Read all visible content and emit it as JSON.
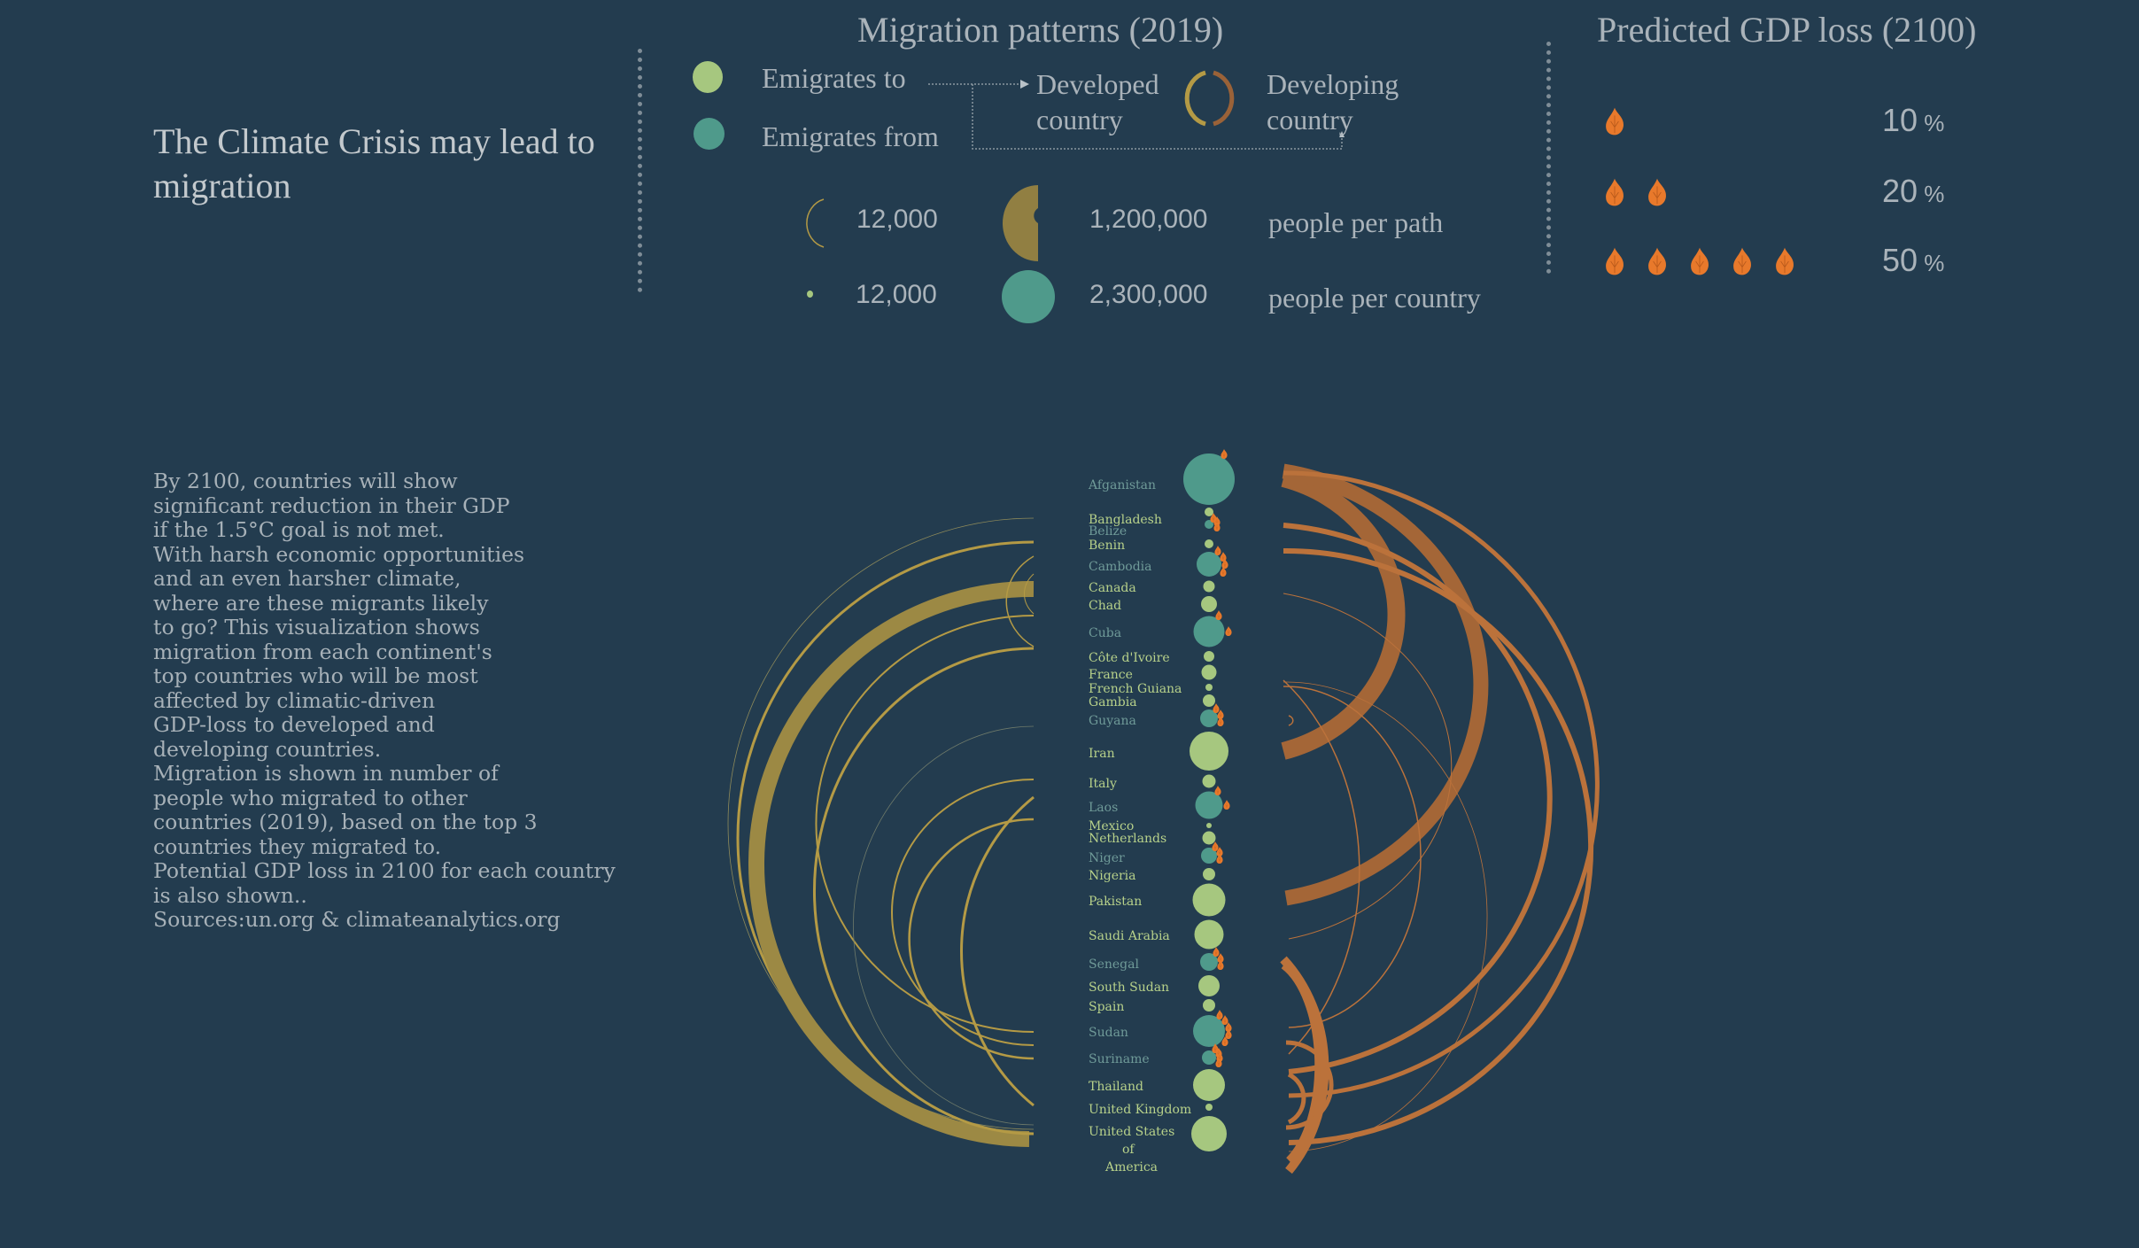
{
  "title": "The Climate Crisis may lead to migration",
  "description": "By 2100, countries will show\nsignificant reduction in their GDP\nif the 1.5°C goal is not met.\nWith harsh economic opportunities\nand an even harsher climate,\nwhere are these migrants likely\nto go? This visualization shows\nmigration from each continent's\ntop countries who will be most\naffected by climatic-driven\nGDP-loss to developed and\ndeveloping countries.\nMigration is shown in number of\npeople who migrated to other\ncountries (2019), based on the top 3\ncountries they migrated to.\nPotential GDP loss in 2100 for each country\nis also shown..\nSources:un.org & climateanalytics.org",
  "migration_legend": {
    "title": "Migration patterns (2019)",
    "emigrates_to": "Emigrates to",
    "emigrates_from": "Emigrates from",
    "developed": "Developed country",
    "developed_l1": "Developed",
    "developed_l2": "country",
    "developing_l1": "Developing",
    "developing_l2": "country",
    "path_min": "12,000",
    "path_max": "1,200,000",
    "path_label": "people per path",
    "country_min": "12,000",
    "country_max": "2,300,000",
    "country_label": "people per country"
  },
  "gdp_legend": {
    "title": "Predicted GDP loss (2100)",
    "rows": [
      {
        "flames": 1,
        "value": "10",
        "unit": "%"
      },
      {
        "flames": 2,
        "value": "20",
        "unit": "%"
      },
      {
        "flames": 5,
        "value": "50",
        "unit": "%"
      }
    ]
  },
  "colors": {
    "background": "#233c4f",
    "developed_node": "#a6c77f",
    "developing_node": "#4f9a8b",
    "developed_path": "#b49a45",
    "developing_path": "#c8773a",
    "flame": "#e8792b",
    "text": "#aab3ba"
  },
  "chart_data": {
    "type": "arc-diagram",
    "title": "Migration patterns (2019)",
    "countries": [
      {
        "name": "Afganistan",
        "type": "developing",
        "size": "large",
        "gdp_loss_flames": 1
      },
      {
        "name": "Bangladesh",
        "type": "developed",
        "size": "small"
      },
      {
        "name": "Belize",
        "type": "developing",
        "size": "small",
        "gdp_loss_flames": 3
      },
      {
        "name": "Benin",
        "type": "developed",
        "size": "small"
      },
      {
        "name": "Cambodia",
        "type": "developing",
        "size": "medium",
        "gdp_loss_flames": 4
      },
      {
        "name": "Canada",
        "type": "developed",
        "size": "small"
      },
      {
        "name": "Chad",
        "type": "developed",
        "size": "small"
      },
      {
        "name": "Cuba",
        "type": "developing",
        "size": "medium",
        "gdp_loss_flames": 2
      },
      {
        "name": "Côte d'Ivoire",
        "type": "developed",
        "size": "small"
      },
      {
        "name": "France",
        "type": "developed",
        "size": "small"
      },
      {
        "name": "French Guiana",
        "type": "developed",
        "size": "tiny"
      },
      {
        "name": "Gambia",
        "type": "developed",
        "size": "small"
      },
      {
        "name": "Guyana",
        "type": "developing",
        "size": "small",
        "gdp_loss_flames": 3
      },
      {
        "name": "Iran",
        "type": "developed",
        "size": "large"
      },
      {
        "name": "Italy",
        "type": "developed",
        "size": "small"
      },
      {
        "name": "Laos",
        "type": "developing",
        "size": "medium",
        "gdp_loss_flames": 2
      },
      {
        "name": "Mexico",
        "type": "developed",
        "size": "tiny"
      },
      {
        "name": "Netherlands",
        "type": "developed",
        "size": "small"
      },
      {
        "name": "Niger",
        "type": "developing",
        "size": "small",
        "gdp_loss_flames": 3
      },
      {
        "name": "Nigeria",
        "type": "developed",
        "size": "small"
      },
      {
        "name": "Pakistan",
        "type": "developed",
        "size": "medium"
      },
      {
        "name": "Saudi Arabia",
        "type": "developed",
        "size": "medium"
      },
      {
        "name": "Senegal",
        "type": "developing",
        "size": "small",
        "gdp_loss_flames": 3
      },
      {
        "name": "South Sudan",
        "type": "developed",
        "size": "small"
      },
      {
        "name": "Spain",
        "type": "developed",
        "size": "small"
      },
      {
        "name": "Sudan",
        "type": "developing",
        "size": "medium",
        "gdp_loss_flames": 5
      },
      {
        "name": "Suriname",
        "type": "developing",
        "size": "small",
        "gdp_loss_flames": 4
      },
      {
        "name": "Thailand",
        "type": "developed",
        "size": "medium"
      },
      {
        "name": "United Kingdom",
        "type": "developed",
        "size": "tiny"
      },
      {
        "name": "United States of America",
        "type": "developed",
        "size": "large"
      }
    ],
    "legend": {
      "path_width_scale": [
        "12,000",
        "1,200,000"
      ],
      "node_size_scale": [
        "12,000",
        "2,300,000"
      ],
      "gdp_loss_scale": [
        {
          "flames": 1,
          "pct": 10
        },
        {
          "flames": 2,
          "pct": 20
        },
        {
          "flames": 5,
          "pct": 50
        }
      ]
    }
  }
}
